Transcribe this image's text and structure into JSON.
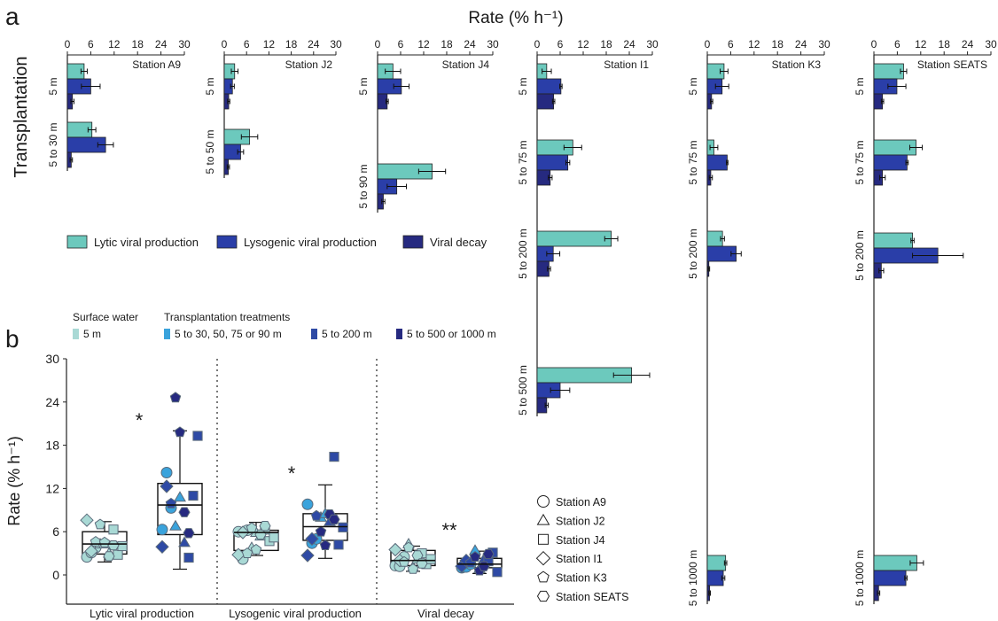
{
  "figure": {
    "panel_a_letter": "a",
    "panel_b_letter": "b",
    "panel_a_axis_title": "Rate (% h⁻¹)",
    "panel_a_row_label": "Transplantation"
  },
  "colors": {
    "lytic": "#6cc9bd",
    "lysogenic": "#2a3ea8",
    "decay": "#262a80",
    "surface": "#a9d9d5",
    "treat_light": "#3aa3dc",
    "treat_mid": "#2e4aa5",
    "treat_dark": "#262a80",
    "box_light_fill": "#a9d9d5",
    "box_dark_fill": "#2a3ea8"
  },
  "legend_a": [
    {
      "label": "Lytic viral production",
      "color_key": "lytic"
    },
    {
      "label": "Lysogenic viral production",
      "color_key": "lysogenic"
    },
    {
      "label": "Viral decay",
      "color_key": "decay"
    }
  ],
  "legend_b": {
    "surface_heading": "Surface water",
    "treat_heading": "Transplantation treatments",
    "items": [
      {
        "label": "5 m",
        "color_key": "surface"
      },
      {
        "label": "5 to 30, 50, 75 or 90 m",
        "color_key": "treat_light"
      },
      {
        "label": "5 to 200 m",
        "color_key": "treat_mid"
      },
      {
        "label": "5 to 500 or 1000 m",
        "color_key": "treat_dark"
      }
    ]
  },
  "station_legend": [
    {
      "label": "Station A9",
      "icon": "circle-icon"
    },
    {
      "label": "Station J2",
      "icon": "triangle-icon"
    },
    {
      "label": "Station J4",
      "icon": "square-icon"
    },
    {
      "label": "Station I1",
      "icon": "diamond-icon"
    },
    {
      "label": "Station K3",
      "icon": "pentagon-icon"
    },
    {
      "label": "Station SEATS",
      "icon": "hexagon-icon"
    }
  ],
  "chart_data": [
    {
      "type": "bar",
      "orientation": "horizontal",
      "title": "Station A9",
      "xlim": [
        0,
        30
      ],
      "xticks": [
        0,
        6,
        12,
        18,
        24,
        30
      ],
      "series_names": [
        "Lytic viral production",
        "Lysogenic viral production",
        "Viral decay"
      ],
      "groups": [
        {
          "label": "5 m",
          "values": [
            4.3,
            6.0,
            1.3
          ],
          "errors": [
            0.8,
            2.4,
            0.4
          ]
        },
        {
          "label": "5 to 30 m",
          "values": [
            6.3,
            9.8,
            1.0
          ],
          "errors": [
            1.0,
            2.0,
            0.3
          ]
        }
      ]
    },
    {
      "type": "bar",
      "orientation": "horizontal",
      "title": "Station J2",
      "xlim": [
        0,
        30
      ],
      "xticks": [
        0,
        6,
        12,
        18,
        24,
        30
      ],
      "series_names": [
        "Lytic viral production",
        "Lysogenic viral production",
        "Viral decay"
      ],
      "groups": [
        {
          "label": "5 m",
          "values": [
            2.8,
            2.2,
            1.2
          ],
          "errors": [
            0.9,
            0.5,
            0.3
          ]
        },
        {
          "label": "5 to 50 m",
          "values": [
            6.8,
            4.4,
            1.1
          ],
          "errors": [
            2.2,
            0.8,
            0.3
          ]
        }
      ]
    },
    {
      "type": "bar",
      "orientation": "horizontal",
      "title": "Station J4",
      "xlim": [
        0,
        30
      ],
      "xticks": [
        0,
        6,
        12,
        18,
        24,
        30
      ],
      "series_names": [
        "Lytic viral production",
        "Lysogenic viral production",
        "Viral decay"
      ],
      "groups": [
        {
          "label": "5 m",
          "values": [
            4.0,
            6.2,
            2.5
          ],
          "errors": [
            2.0,
            2.0,
            0.3
          ]
        },
        {
          "label": "5 to 90 m",
          "values": [
            14.2,
            5.0,
            1.5
          ],
          "errors": [
            3.5,
            2.5,
            0.4
          ]
        }
      ]
    },
    {
      "type": "bar",
      "orientation": "horizontal",
      "title": "Station I1",
      "xlim": [
        0,
        30
      ],
      "xticks": [
        0,
        6,
        12,
        18,
        24,
        30
      ],
      "series_names": [
        "Lytic viral production",
        "Lysogenic viral production",
        "Viral decay"
      ],
      "groups": [
        {
          "label": "5 m",
          "values": [
            2.5,
            6.2,
            4.3
          ],
          "errors": [
            1.2,
            0.3,
            0.3
          ]
        },
        {
          "label": "5 to 75 m",
          "values": [
            9.3,
            8.0,
            3.4
          ],
          "errors": [
            2.3,
            0.5,
            0.5
          ]
        },
        {
          "label": "5 to 200 m",
          "values": [
            19.3,
            4.2,
            3.1
          ],
          "errors": [
            1.7,
            1.7,
            0.4
          ]
        },
        {
          "label": "5 to 500 m",
          "values": [
            24.6,
            6.0,
            2.5
          ],
          "errors": [
            4.7,
            2.5,
            0.4
          ]
        }
      ]
    },
    {
      "type": "bar",
      "orientation": "horizontal",
      "title": "Station K3",
      "xlim": [
        0,
        30
      ],
      "xticks": [
        0,
        6,
        12,
        18,
        24,
        30
      ],
      "series_names": [
        "Lytic viral production",
        "Lysogenic viral production",
        "Viral decay"
      ],
      "groups": [
        {
          "label": "5 m",
          "values": [
            4.3,
            3.8,
            1.1
          ],
          "errors": [
            1.0,
            1.7,
            0.3
          ]
        },
        {
          "label": "5 to 75 m",
          "values": [
            1.7,
            5.1,
            0.9
          ],
          "errors": [
            1.0,
            0.2,
            0.4
          ]
        },
        {
          "label": "5 to 200 m",
          "values": [
            3.9,
            7.4,
            0.4
          ],
          "errors": [
            0.5,
            1.3,
            0.2
          ]
        },
        {
          "label": "5 to 1000 m",
          "values": [
            4.7,
            4.1,
            0.6
          ],
          "errors": [
            0.3,
            0.4,
            0.2
          ]
        }
      ]
    },
    {
      "type": "bar",
      "orientation": "horizontal",
      "title": "Station SEATS",
      "xlim": [
        0,
        30
      ],
      "xticks": [
        0,
        6,
        12,
        18,
        24,
        30
      ],
      "series_names": [
        "Lytic viral production",
        "Lysogenic viral production",
        "Viral decay"
      ],
      "groups": [
        {
          "label": "5 m",
          "values": [
            7.6,
            5.9,
            2.2
          ],
          "errors": [
            0.8,
            2.3,
            0.3
          ]
        },
        {
          "label": "5 to 75 m",
          "values": [
            10.8,
            8.5,
            2.2
          ],
          "errors": [
            1.6,
            0.3,
            0.7
          ]
        },
        {
          "label": "5 to 200 m",
          "values": [
            9.9,
            16.4,
            1.9
          ],
          "errors": [
            0.4,
            6.5,
            0.6
          ]
        },
        {
          "label": "5 to 1000 m",
          "values": [
            11.0,
            8.2,
            1.2
          ],
          "errors": [
            1.7,
            0.3,
            0.3
          ]
        }
      ]
    },
    {
      "type": "box",
      "ylabel": "Rate (% h⁻¹)",
      "ylim": [
        0,
        30
      ],
      "yticks": [
        0,
        6,
        12,
        18,
        24,
        30
      ],
      "categories": [
        "Lytic viral production",
        "Lysogenic viral production",
        "Viral decay"
      ],
      "significance": [
        "*",
        "*",
        "**"
      ],
      "boxes": [
        {
          "category": "Lytic viral production",
          "group": "Surface water",
          "fill_key": "box_light_fill",
          "whisker_low": 1.8,
          "q1": 2.9,
          "median": 4.3,
          "q3": 6.0,
          "whisker_high": 7.4
        },
        {
          "category": "Lytic viral production",
          "group": "Transplantation treatments",
          "fill_key": "box_dark_fill",
          "whisker_low": 0.8,
          "q1": 5.6,
          "median": 9.7,
          "q3": 12.7,
          "whisker_high": 20.0
        },
        {
          "category": "Lysogenic viral production",
          "group": "Surface water",
          "fill_key": "box_light_fill",
          "whisker_low": 2.7,
          "q1": 3.4,
          "median": 5.9,
          "q3": 6.2,
          "whisker_high": 7.3
        },
        {
          "category": "Lysogenic viral production",
          "group": "Transplantation treatments",
          "fill_key": "box_dark_fill",
          "whisker_low": 2.3,
          "q1": 4.8,
          "median": 6.7,
          "q3": 8.5,
          "whisker_high": 12.5
        },
        {
          "category": "Viral decay",
          "group": "Surface water",
          "fill_key": "box_light_fill",
          "whisker_low": 0.5,
          "q1": 1.3,
          "median": 2.0,
          "q3": 3.4,
          "whisker_high": 4.0
        },
        {
          "category": "Viral decay",
          "group": "Transplantation treatments",
          "fill_key": "box_dark_fill",
          "whisker_low": 0.2,
          "q1": 1.0,
          "median": 1.5,
          "q3": 2.3,
          "whisker_high": 3.3
        }
      ],
      "points": [
        {
          "box": 0,
          "values": [
            2.5,
            3.1,
            3.8,
            4.3,
            4.3,
            3.0,
            6.3,
            2.8,
            4.0,
            7.6,
            3.3,
            4.6,
            7.0,
            4.5,
            2.6,
            4.1
          ],
          "color_key": "surface"
        },
        {
          "box": 1,
          "values": [
            6.3,
            14.2,
            9.3,
            6.8,
            10.8,
            4.5,
            2.4,
            11.0,
            19.3,
            3.9,
            12.3,
            9.9,
            24.6,
            19.8,
            8.7,
            5.8
          ],
          "colors": [
            "treat_light",
            "treat_light",
            "treat_light",
            "treat_light",
            "treat_light",
            "treat_mid",
            "treat_mid",
            "treat_mid",
            "treat_mid",
            "treat_mid",
            "treat_mid",
            "treat_mid",
            "treat_dark",
            "treat_dark",
            "treat_dark",
            "treat_dark"
          ]
        },
        {
          "box": 2,
          "values": [
            6.0,
            2.2,
            6.2,
            3.8,
            5.9,
            5.4,
            6.3,
            4.7,
            5.2,
            2.8,
            5.9,
            3.0,
            6.5,
            3.5,
            5.6,
            6.8
          ],
          "color_key": "surface"
        },
        {
          "box": 3,
          "values": [
            9.8,
            4.4,
            5.0,
            8.0,
            8.5,
            7.4,
            16.4,
            4.2,
            6.6,
            2.7,
            5.0,
            8.2,
            6.0,
            4.1,
            8.4,
            7.7
          ],
          "colors": [
            "treat_light",
            "treat_light",
            "treat_light",
            "treat_light",
            "treat_light",
            "treat_mid",
            "treat_mid",
            "treat_mid",
            "treat_mid",
            "treat_mid",
            "treat_mid",
            "treat_mid",
            "treat_dark",
            "treat_dark",
            "treat_dark",
            "treat_dark"
          ]
        },
        {
          "box": 4,
          "values": [
            1.3,
            1.2,
            2.5,
            4.3,
            1.1,
            2.2,
            3.0,
            1.5,
            2.2,
            3.5,
            2.0,
            1.8,
            3.8,
            0.8,
            2.7,
            1.6
          ],
          "color_key": "surface"
        },
        {
          "box": 5,
          "values": [
            1.0,
            1.1,
            1.5,
            3.4,
            0.9,
            2.2,
            1.9,
            3.1,
            0.4,
            1.2,
            2.0,
            1.7,
            2.5,
            0.6,
            1.2,
            2.9
          ],
          "colors": [
            "treat_light",
            "treat_light",
            "treat_light",
            "treat_light",
            "treat_light",
            "treat_mid",
            "treat_mid",
            "treat_mid",
            "treat_mid",
            "treat_mid",
            "treat_mid",
            "treat_mid",
            "treat_dark",
            "treat_dark",
            "treat_dark",
            "treat_dark"
          ]
        }
      ]
    }
  ]
}
